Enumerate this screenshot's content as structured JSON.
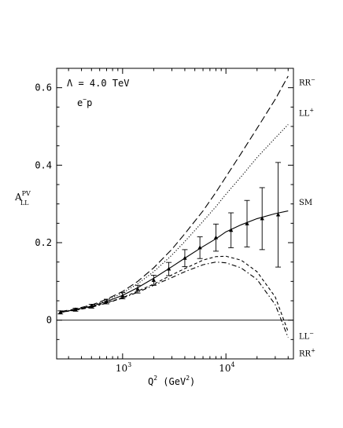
{
  "chart_data": {
    "type": "line",
    "title": "",
    "xlabel": {
      "main": "Q",
      "sup": "2",
      "unit": " (GeV",
      "unit_sup": "2",
      "close": ")"
    },
    "ylabel": {
      "main": "A",
      "sup": "PV",
      "sub": "LL"
    },
    "xscale": "log",
    "xlim": [
      230,
      45000
    ],
    "ylim": [
      -0.1,
      0.65
    ],
    "x_ticks": [
      {
        "value": 1000,
        "base": "10",
        "exp": "3"
      },
      {
        "value": 10000,
        "base": "10",
        "exp": "4"
      }
    ],
    "y_ticks": [
      {
        "value": 0,
        "label": "0"
      },
      {
        "value": 0.2,
        "label": "0.2"
      },
      {
        "value": 0.4,
        "label": "0.4"
      },
      {
        "value": 0.6,
        "label": "0.6"
      }
    ],
    "annotations": {
      "lambda": "Λ = 4.0 TeV",
      "process": "e",
      "process_sup": "−",
      "process_tail": "p"
    },
    "series": [
      {
        "name": "RR",
        "sup": "−",
        "style": "long-dash",
        "label_y": 0.615,
        "x": [
          250,
          350,
          500,
          700,
          1000,
          1400,
          2000,
          3000,
          4000,
          6000,
          8000,
          10000,
          14000,
          20000,
          30000,
          40000
        ],
        "y": [
          0.022,
          0.029,
          0.039,
          0.054,
          0.074,
          0.1,
          0.135,
          0.183,
          0.223,
          0.282,
          0.33,
          0.37,
          0.43,
          0.495,
          0.57,
          0.63
        ]
      },
      {
        "name": "LL",
        "sup": "+",
        "style": "dotted",
        "label_y": 0.535,
        "x": [
          250,
          350,
          500,
          700,
          1000,
          1400,
          2000,
          3000,
          4000,
          6000,
          8000,
          10000,
          14000,
          20000,
          30000,
          40000
        ],
        "y": [
          0.021,
          0.028,
          0.037,
          0.051,
          0.07,
          0.094,
          0.125,
          0.168,
          0.203,
          0.255,
          0.293,
          0.325,
          0.37,
          0.42,
          0.47,
          0.505
        ]
      },
      {
        "name": "SM",
        "sup": "",
        "style": "solid",
        "label_y": 0.305,
        "x": [
          250,
          350,
          500,
          700,
          1000,
          1400,
          2000,
          3000,
          4000,
          6000,
          8000,
          10000,
          14000,
          20000,
          30000,
          40000
        ],
        "y": [
          0.02,
          0.027,
          0.036,
          0.048,
          0.064,
          0.084,
          0.108,
          0.138,
          0.16,
          0.19,
          0.21,
          0.228,
          0.246,
          0.262,
          0.275,
          0.282
        ]
      },
      {
        "name": "LL",
        "sup": "−",
        "style": "short-dash",
        "label_y": -0.04,
        "x": [
          250,
          350,
          500,
          700,
          1000,
          1400,
          2000,
          3000,
          4000,
          6000,
          8000,
          10000,
          14000,
          20000,
          30000,
          40000
        ],
        "y": [
          0.02,
          0.026,
          0.034,
          0.045,
          0.058,
          0.075,
          0.093,
          0.117,
          0.133,
          0.155,
          0.164,
          0.165,
          0.155,
          0.125,
          0.06,
          -0.03
        ]
      },
      {
        "name": "RR",
        "sup": "+",
        "style": "dash-dot",
        "label_y": -0.085,
        "x": [
          250,
          350,
          500,
          700,
          1000,
          1400,
          2000,
          3000,
          4000,
          6000,
          8000,
          10000,
          14000,
          20000,
          30000,
          40000
        ],
        "y": [
          0.02,
          0.026,
          0.033,
          0.044,
          0.057,
          0.072,
          0.09,
          0.11,
          0.125,
          0.143,
          0.15,
          0.148,
          0.135,
          0.105,
          0.04,
          -0.045
        ]
      }
    ],
    "sm_points": {
      "x": [
        250,
        350,
        500,
        700,
        1000,
        1400,
        2000,
        2800,
        4000,
        5600,
        8000,
        11200,
        16000,
        22400,
        32000
      ],
      "y": [
        0.02,
        0.027,
        0.036,
        0.048,
        0.063,
        0.08,
        0.103,
        0.132,
        0.16,
        0.187,
        0.213,
        0.232,
        0.249,
        0.262,
        0.272
      ],
      "err": [
        0.004,
        0.004,
        0.005,
        0.006,
        0.008,
        0.01,
        0.013,
        0.017,
        0.022,
        0.028,
        0.035,
        0.045,
        0.06,
        0.08,
        0.135
      ]
    }
  }
}
